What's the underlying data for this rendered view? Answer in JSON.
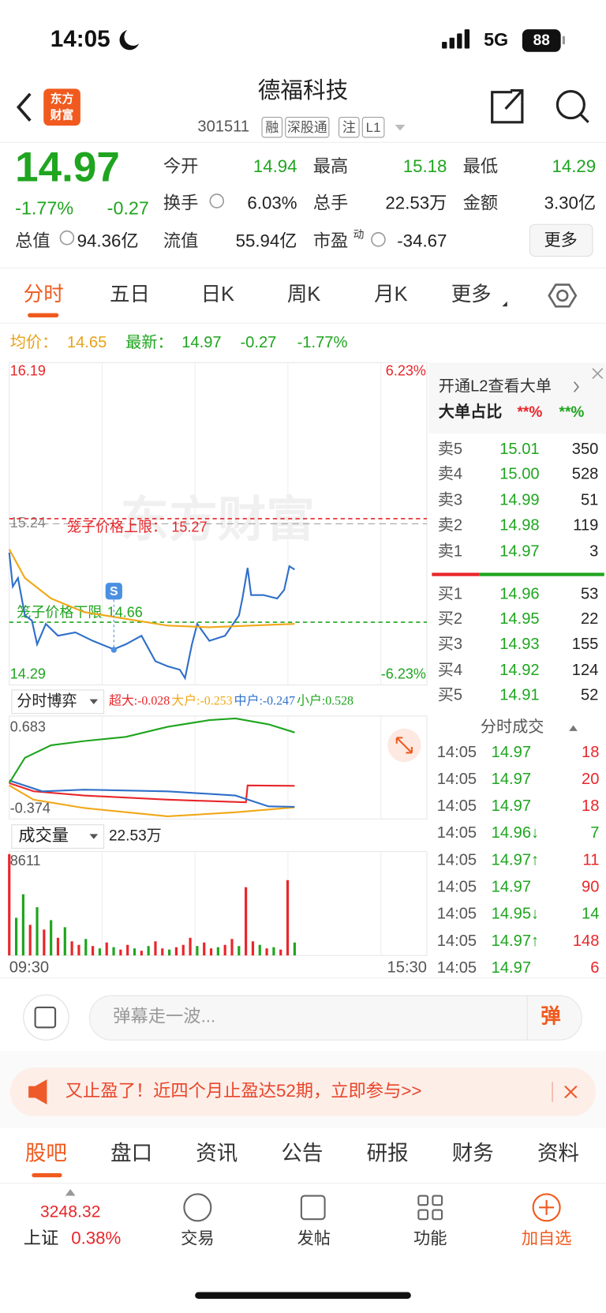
{
  "status_bar": {
    "time": "14:05",
    "network": "5G",
    "battery": "88"
  },
  "header": {
    "logo": [
      "东方",
      "财富"
    ],
    "title": "德福科技",
    "code": "301511",
    "badges": [
      "融",
      "深股通",
      "注",
      "L1"
    ]
  },
  "quote": {
    "price": "14.97",
    "change_pct": "-1.77%",
    "change": "-0.27",
    "fields": [
      [
        "今开",
        "14.94"
      ],
      [
        "最高",
        "15.18"
      ],
      [
        "最低",
        "14.29"
      ],
      [
        "换手",
        "6.03%"
      ],
      [
        "总手",
        "22.53万"
      ],
      [
        "金额",
        "3.30亿"
      ],
      [
        "总值",
        "94.36亿"
      ],
      [
        "流值",
        "55.94亿"
      ],
      [
        "市盈",
        "-34.67"
      ]
    ],
    "pe_sup": "动",
    "more": "更多"
  },
  "period_tabs": [
    "分时",
    "五日",
    "日K",
    "周K",
    "月K",
    "更多"
  ],
  "summary": {
    "avg_label": "均价：",
    "avg": "14.65",
    "latest_label": "最新：",
    "latest": "14.97",
    "change": "-0.27",
    "change_pct": "-1.77%"
  },
  "chart_data": [
    {
      "type": "line",
      "watermark": "东方财富",
      "marker": "S",
      "xlim": [
        0,
        240
      ],
      "ylim": [
        14.29,
        16.19
      ],
      "yticks": [
        14.29,
        15.24,
        16.19
      ],
      "y2lim": [
        -6.23,
        6.23
      ],
      "y2ticks": [
        {
          "value": -6.23,
          "label": "-6.23%"
        },
        {
          "value": 6.23,
          "label": "6.23%"
        }
      ],
      "reference_lines": [
        {
          "label": "笼子价格上限：",
          "value": 15.27,
          "color": "#e8262a"
        },
        {
          "label": "笼子价格下限",
          "value": 14.66,
          "color": "#1fa51f"
        }
      ],
      "series": [
        {
          "color": "#2f6fc9",
          "x": [
            0,
            2,
            5,
            9,
            13,
            16,
            21,
            28,
            38,
            48,
            60,
            67,
            76,
            84,
            91,
            98,
            101,
            105,
            108,
            115,
            124,
            132,
            134,
            137,
            139,
            146,
            154,
            158,
            161,
            164
          ],
          "values": [
            15.07,
            14.87,
            14.92,
            14.7,
            14.67,
            14.53,
            14.65,
            14.58,
            14.6,
            14.55,
            14.5,
            14.53,
            14.58,
            14.43,
            14.4,
            14.38,
            14.33,
            14.53,
            14.65,
            14.55,
            14.58,
            14.7,
            14.8,
            14.98,
            14.82,
            14.82,
            14.8,
            14.85,
            14.99,
            14.97
          ]
        },
        {
          "color": "#f0a818",
          "x": [
            0,
            9,
            24,
            43,
            67,
            91,
            115,
            139,
            164
          ],
          "values": [
            15.09,
            14.92,
            14.8,
            14.72,
            14.68,
            14.64,
            14.63,
            14.64,
            14.65
          ]
        }
      ]
    },
    {
      "type": "line",
      "title": "分时博弈",
      "xlim": [
        0,
        240
      ],
      "ylim": [
        -0.374,
        0.683
      ],
      "yticks": [
        -0.374,
        0.683
      ],
      "series": [
        {
          "name": "超大:-0.028",
          "color": "#e8262a",
          "x": [
            0,
            14,
            43,
            91,
            136,
            137,
            164
          ],
          "values": [
            0.0,
            -0.086,
            -0.129,
            -0.173,
            -0.2,
            -0.025,
            -0.028
          ]
        },
        {
          "name": "大户:-0.253",
          "color": "#f0a818",
          "x": [
            0,
            14,
            43,
            91,
            130,
            164
          ],
          "values": [
            -0.025,
            -0.173,
            -0.26,
            -0.347,
            -0.304,
            -0.253
          ]
        },
        {
          "name": "中户:-0.247",
          "color": "#2f6fc9",
          "x": [
            0,
            19,
            43,
            91,
            130,
            149,
            164
          ],
          "values": [
            0.028,
            -0.086,
            -0.068,
            -0.086,
            -0.129,
            -0.243,
            -0.247
          ]
        },
        {
          "name": "小户:0.528",
          "color": "#1fa51f",
          "x": [
            0,
            9,
            24,
            43,
            67,
            91,
            115,
            130,
            149,
            164
          ],
          "values": [
            0.002,
            0.264,
            0.395,
            0.438,
            0.482,
            0.587,
            0.657,
            0.674,
            0.613,
            0.528
          ]
        }
      ]
    },
    {
      "type": "bar",
      "title": "成交量",
      "total": "22.53万",
      "xlim": [
        0,
        240
      ],
      "ylim": [
        0,
        8611
      ],
      "yticks": [
        8611
      ],
      "xticks": [
        {
          "value": 0,
          "label": "09:30"
        },
        {
          "value": 240,
          "label": "15:30"
        }
      ],
      "x": [
        0,
        4,
        8,
        12,
        16,
        20,
        24,
        28,
        32,
        36,
        40,
        44,
        48,
        52,
        56,
        60,
        64,
        68,
        72,
        76,
        80,
        84,
        88,
        92,
        96,
        100,
        104,
        108,
        112,
        116,
        120,
        124,
        128,
        132,
        136,
        140,
        144,
        148,
        152,
        156,
        160,
        164
      ],
      "values": [
        8611,
        3200,
        5200,
        2600,
        4100,
        2200,
        3000,
        1500,
        2400,
        1200,
        900,
        1400,
        800,
        600,
        1100,
        700,
        500,
        900,
        600,
        400,
        800,
        1200,
        600,
        500,
        700,
        900,
        1500,
        800,
        1100,
        600,
        700,
        900,
        1400,
        800,
        5800,
        1200,
        900,
        600,
        700,
        500,
        6400,
        1100
      ],
      "colors": [
        "#e8262a",
        "#1fa51f",
        "#1fa51f",
        "#e8262a",
        "#1fa51f",
        "#e8262a",
        "#1fa51f",
        "#e8262a",
        "#1fa51f",
        "#e8262a",
        "#e8262a",
        "#1fa51f",
        "#e8262a",
        "#1fa51f",
        "#e8262a",
        "#1fa51f",
        "#e8262a",
        "#e8262a",
        "#1fa51f",
        "#e8262a",
        "#1fa51f",
        "#e8262a",
        "#e8262a",
        "#1fa51f",
        "#e8262a",
        "#e8262a",
        "#e8262a",
        "#1fa51f",
        "#e8262a",
        "#e8262a",
        "#1fa51f",
        "#e8262a",
        "#e8262a",
        "#1fa51f",
        "#e8262a",
        "#e8262a",
        "#1fa51f",
        "#e8262a",
        "#1fa51f",
        "#e8262a",
        "#e8262a",
        "#1fa51f"
      ]
    }
  ],
  "order_panel": {
    "promo": "开通L2查看大单",
    "big_label": "大单占比",
    "big_buy": "**%",
    "big_sell": "**%",
    "asks": [
      [
        "卖5",
        "15.01",
        "350"
      ],
      [
        "卖4",
        "15.00",
        "528"
      ],
      [
        "卖3",
        "14.99",
        "51"
      ],
      [
        "卖2",
        "14.98",
        "119"
      ],
      [
        "卖1",
        "14.97",
        "3"
      ]
    ],
    "bids": [
      [
        "买1",
        "14.96",
        "53"
      ],
      [
        "买2",
        "14.95",
        "22"
      ],
      [
        "买3",
        "14.93",
        "155"
      ],
      [
        "买4",
        "14.92",
        "124"
      ],
      [
        "买5",
        "14.91",
        "52"
      ]
    ],
    "trades_title": "分时成交",
    "trades": [
      {
        "time": "14:05",
        "price": "14.97",
        "volume": "18",
        "color": "#e8262a"
      },
      {
        "time": "14:05",
        "price": "14.97",
        "volume": "20",
        "color": "#e8262a"
      },
      {
        "time": "14:05",
        "price": "14.97",
        "volume": "18",
        "color": "#e8262a"
      },
      {
        "time": "14:05",
        "price": "14.96↓",
        "volume": "7",
        "color": "#1fa51f"
      },
      {
        "time": "14:05",
        "price": "14.97↑",
        "volume": "11",
        "color": "#e8262a"
      },
      {
        "time": "14:05",
        "price": "14.97",
        "volume": "90",
        "color": "#e8262a"
      },
      {
        "time": "14:05",
        "price": "14.95↓",
        "volume": "14",
        "color": "#1fa51f"
      },
      {
        "time": "14:05",
        "price": "14.97↑",
        "volume": "148",
        "color": "#e8262a"
      },
      {
        "time": "14:05",
        "price": "14.97",
        "volume": "6",
        "color": "#e8262a"
      }
    ]
  },
  "comment": {
    "placeholder": "弹幕走一波...",
    "button": "弹"
  },
  "banner": "又止盈了！近四个月止盈达52期，立即参与>>",
  "bottom_tabs": [
    "股吧",
    "盘口",
    "资讯",
    "公告",
    "研报",
    "财务",
    "资料"
  ],
  "nav": {
    "index_value": "3248.32",
    "index_name": "上证",
    "index_change": "0.38%",
    "items": [
      "交易",
      "发帖",
      "功能",
      "加自选"
    ]
  }
}
